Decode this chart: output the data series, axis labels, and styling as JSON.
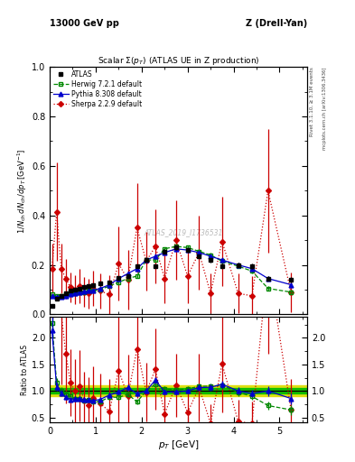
{
  "title_top_left": "13000 GeV pp",
  "title_top_right": "Z (Drell-Yan)",
  "plot_title": "Scalar Σ(p_T) (ATLAS UE in Z production)",
  "ylabel_main": "1/N_{ch} dN_{ch}/dp_T [GeV⁻¹]",
  "ylabel_ratio": "Ratio to ATLAS",
  "xlabel": "p_T [GeV]",
  "watermark": "ATLAS_2019_I1736531",
  "right_label_top": "Rivet 3.1.10, ≥ 3.1M events",
  "right_label_bottom": "mcplots.cern.ch [arXiv:1306.3436]",
  "atlas_x": [
    0.05,
    0.15,
    0.25,
    0.35,
    0.45,
    0.55,
    0.65,
    0.75,
    0.85,
    0.95,
    1.1,
    1.3,
    1.5,
    1.7,
    1.9,
    2.1,
    2.3,
    2.5,
    2.75,
    3.0,
    3.25,
    3.5,
    3.75,
    4.1,
    4.4,
    4.75,
    5.25
  ],
  "atlas_y": [
    0.035,
    0.065,
    0.075,
    0.085,
    0.095,
    0.1,
    0.105,
    0.11,
    0.115,
    0.12,
    0.125,
    0.13,
    0.148,
    0.155,
    0.195,
    0.22,
    0.195,
    0.255,
    0.27,
    0.26,
    0.235,
    0.22,
    0.195,
    0.2,
    0.195,
    0.145,
    0.14
  ],
  "atlas_yerr": [
    0.004,
    0.004,
    0.004,
    0.004,
    0.004,
    0.004,
    0.004,
    0.004,
    0.004,
    0.004,
    0.005,
    0.005,
    0.006,
    0.006,
    0.007,
    0.008,
    0.008,
    0.009,
    0.009,
    0.009,
    0.009,
    0.009,
    0.009,
    0.01,
    0.01,
    0.01,
    0.012
  ],
  "herwig_x": [
    0.05,
    0.15,
    0.25,
    0.35,
    0.45,
    0.55,
    0.65,
    0.75,
    0.85,
    0.95,
    1.1,
    1.3,
    1.5,
    1.7,
    1.9,
    2.1,
    2.3,
    2.5,
    2.75,
    3.0,
    3.25,
    3.5,
    3.75,
    4.1,
    4.4,
    4.75,
    5.25
  ],
  "herwig_y": [
    0.08,
    0.075,
    0.075,
    0.08,
    0.085,
    0.085,
    0.09,
    0.09,
    0.095,
    0.095,
    0.1,
    0.115,
    0.13,
    0.145,
    0.155,
    0.22,
    0.22,
    0.265,
    0.275,
    0.27,
    0.255,
    0.24,
    0.215,
    0.195,
    0.175,
    0.105,
    0.09
  ],
  "herwig_yerr": [
    0.003,
    0.003,
    0.003,
    0.003,
    0.003,
    0.003,
    0.003,
    0.003,
    0.003,
    0.003,
    0.004,
    0.004,
    0.005,
    0.005,
    0.006,
    0.007,
    0.007,
    0.008,
    0.008,
    0.008,
    0.008,
    0.008,
    0.008,
    0.009,
    0.009,
    0.009,
    0.01
  ],
  "pythia_x": [
    0.05,
    0.15,
    0.25,
    0.35,
    0.45,
    0.55,
    0.65,
    0.75,
    0.85,
    0.95,
    1.1,
    1.3,
    1.5,
    1.7,
    1.9,
    2.1,
    2.3,
    2.5,
    2.75,
    3.0,
    3.25,
    3.5,
    3.75,
    4.1,
    4.4,
    4.75,
    5.25
  ],
  "pythia_y": [
    0.075,
    0.07,
    0.072,
    0.075,
    0.08,
    0.085,
    0.09,
    0.092,
    0.095,
    0.098,
    0.105,
    0.12,
    0.145,
    0.165,
    0.185,
    0.22,
    0.235,
    0.25,
    0.265,
    0.26,
    0.25,
    0.235,
    0.22,
    0.2,
    0.185,
    0.145,
    0.12
  ],
  "pythia_yerr": [
    0.003,
    0.003,
    0.003,
    0.003,
    0.003,
    0.003,
    0.003,
    0.003,
    0.003,
    0.003,
    0.004,
    0.004,
    0.005,
    0.005,
    0.006,
    0.007,
    0.007,
    0.008,
    0.008,
    0.008,
    0.008,
    0.008,
    0.008,
    0.009,
    0.009,
    0.009,
    0.01
  ],
  "sherpa_x": [
    0.05,
    0.15,
    0.25,
    0.35,
    0.45,
    0.55,
    0.65,
    0.75,
    0.85,
    0.95,
    1.1,
    1.3,
    1.5,
    1.7,
    1.9,
    2.1,
    2.3,
    2.5,
    2.75,
    3.0,
    3.25,
    3.5,
    3.75,
    4.1,
    4.4,
    4.75,
    5.25
  ],
  "sherpa_y": [
    0.185,
    0.415,
    0.185,
    0.145,
    0.11,
    0.1,
    0.115,
    0.09,
    0.085,
    0.105,
    0.095,
    0.08,
    0.205,
    0.14,
    0.35,
    0.215,
    0.275,
    0.145,
    0.3,
    0.155,
    0.25,
    0.085,
    0.295,
    0.085,
    0.075,
    0.5,
    0.09
  ],
  "sherpa_yerr": [
    0.1,
    0.2,
    0.1,
    0.08,
    0.06,
    0.06,
    0.07,
    0.06,
    0.06,
    0.07,
    0.07,
    0.08,
    0.15,
    0.12,
    0.18,
    0.12,
    0.15,
    0.1,
    0.16,
    0.11,
    0.15,
    0.08,
    0.18,
    0.08,
    0.08,
    0.25,
    0.08
  ],
  "atlas_band_inner": 0.05,
  "atlas_band_outer": 0.1,
  "color_atlas": "#000000",
  "color_herwig": "#008800",
  "color_pythia": "#0000cc",
  "color_sherpa": "#cc0000",
  "color_band_inner": "#00bb00",
  "color_band_outer": "#dddd00",
  "main_ylim": [
    0.0,
    1.0
  ],
  "ratio_ylim": [
    0.4,
    2.4
  ],
  "ratio_yticks": [
    0.5,
    1.0,
    1.5,
    2.0
  ],
  "main_yticks": [
    0.0,
    0.2,
    0.4,
    0.6,
    0.8,
    1.0
  ],
  "xticks": [
    0,
    1,
    2,
    3,
    4,
    5
  ],
  "xlim": [
    0.0,
    5.6
  ]
}
